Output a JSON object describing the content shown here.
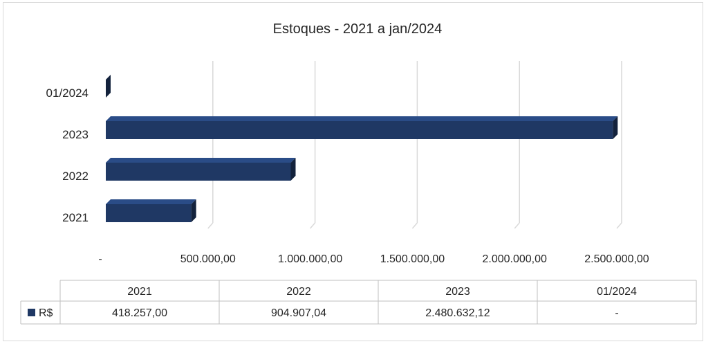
{
  "chart_data": {
    "type": "bar",
    "orientation": "horizontal",
    "title": "Estoques - 2021 a jan/2024",
    "categories": [
      "2021",
      "2022",
      "2023",
      "01/2024"
    ],
    "series": [
      {
        "name": "R$",
        "values": [
          418257.0,
          904907.04,
          2480632.12,
          0
        ],
        "color": "#1f3864"
      }
    ],
    "xlim": [
      0,
      2500000
    ],
    "x_ticks": [
      0,
      500000,
      1000000,
      1500000,
      2000000,
      2500000
    ],
    "x_tick_labels": [
      "-",
      "500.000,00",
      "1.000.000,00",
      "1.500.000,00",
      "2.000.000,00",
      "2.500.000,00"
    ],
    "grid": true,
    "legend": "data-table",
    "data_table": {
      "columns": [
        "2021",
        "2022",
        "2023",
        "01/2024"
      ],
      "rows": [
        {
          "legend_label": "R$",
          "cells": [
            "418.257,00",
            "904.907,04",
            "2.480.632,12",
            "-"
          ]
        }
      ]
    }
  }
}
